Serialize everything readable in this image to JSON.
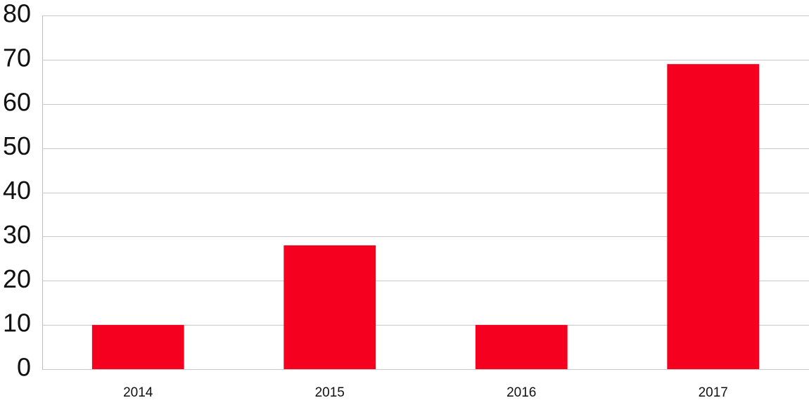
{
  "chart_data": {
    "type": "bar",
    "categories": [
      "2014",
      "2015",
      "2016",
      "2017"
    ],
    "values": [
      10,
      28,
      10,
      69
    ],
    "color": "#f5001f",
    "ylim": [
      0,
      80
    ],
    "yticks": [
      0,
      10,
      20,
      30,
      40,
      50,
      60,
      70,
      80
    ],
    "grid": true
  }
}
